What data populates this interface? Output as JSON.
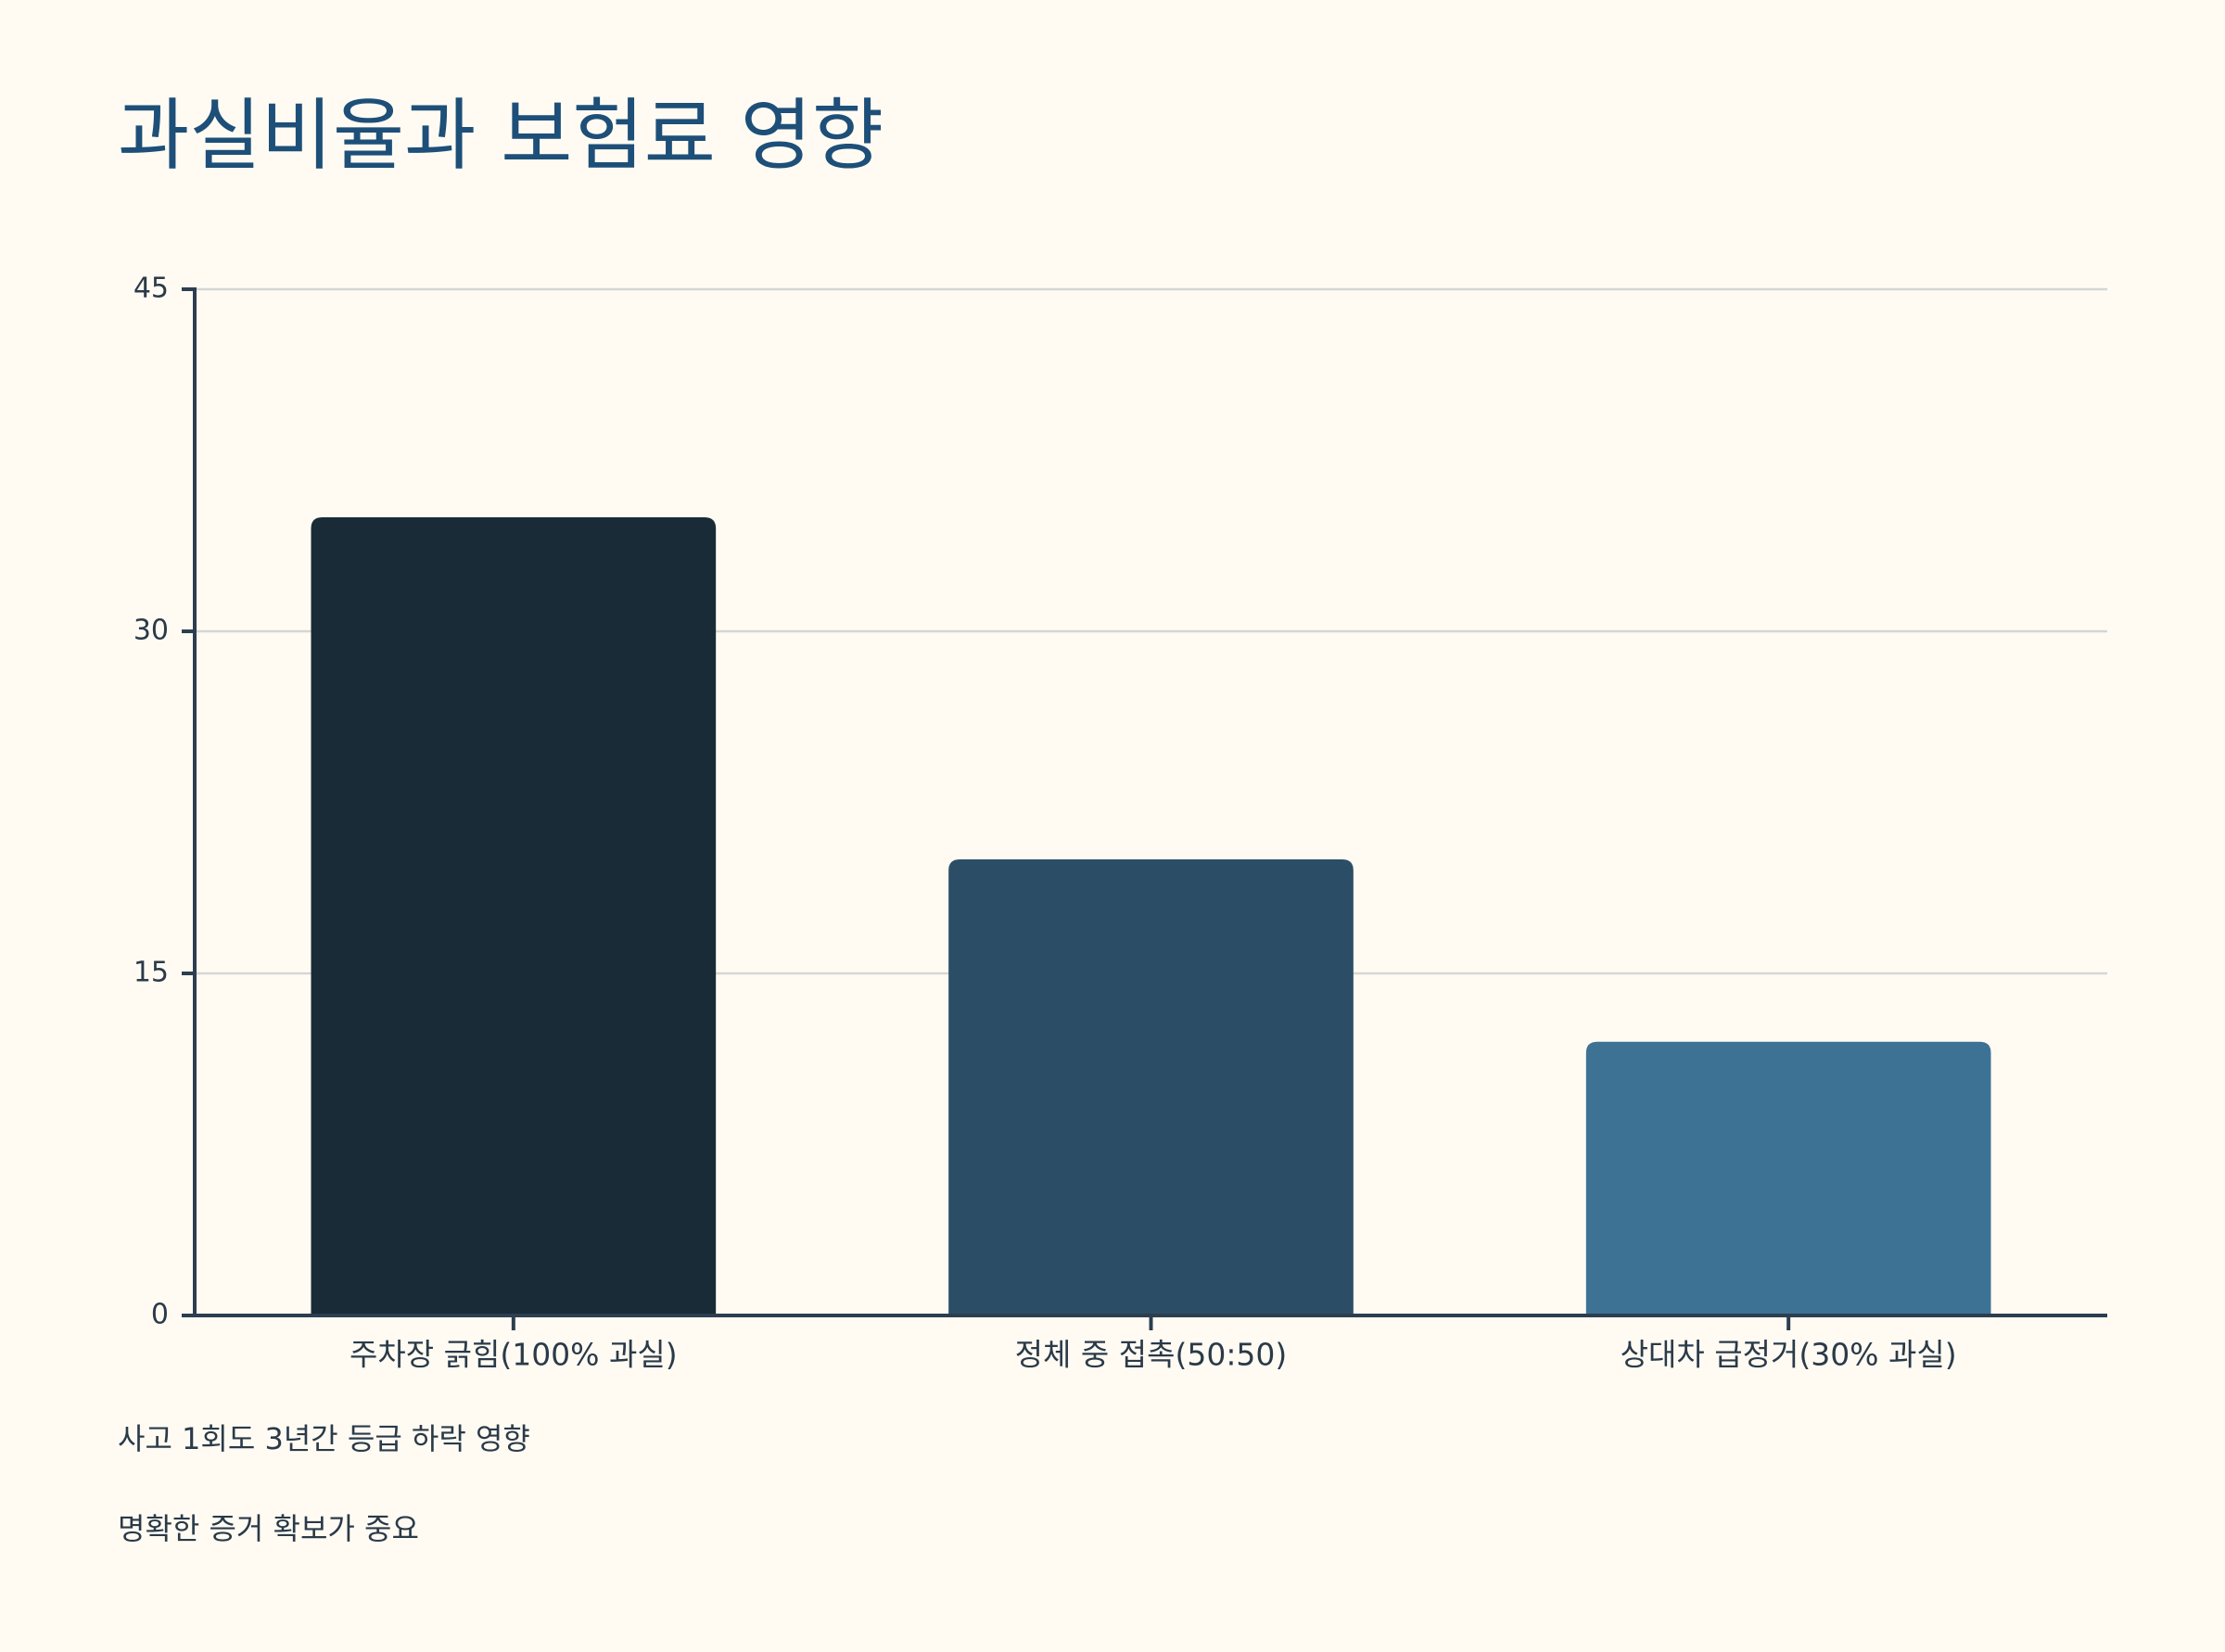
{
  "chart_data": {
    "type": "bar",
    "title": "과실비율과 보험료 영향",
    "categories": [
      "주차장 긁힘(100% 과실)",
      "정체 중 접촉(50:50)",
      "상대차 급정거(30% 과실)"
    ],
    "values": [
      35,
      20,
      12
    ],
    "colors": [
      "#192b36",
      "#2b4e66",
      "#3d7294"
    ],
    "ylim": [
      0,
      45
    ],
    "yticks": [
      0,
      15,
      30,
      45
    ],
    "grid": true,
    "notes": [
      "사고 1회도 3년간 등급 하락 영향",
      "명확한 증거 확보가 중요"
    ]
  }
}
